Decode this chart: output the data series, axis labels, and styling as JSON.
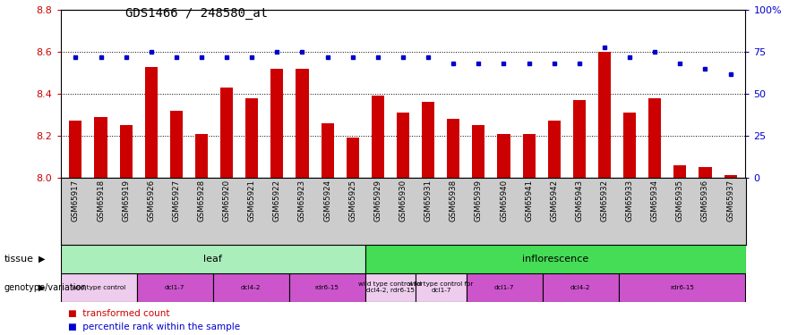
{
  "title": "GDS1466 / 248580_at",
  "samples": [
    "GSM65917",
    "GSM65918",
    "GSM65919",
    "GSM65926",
    "GSM65927",
    "GSM65928",
    "GSM65920",
    "GSM65921",
    "GSM65922",
    "GSM65923",
    "GSM65924",
    "GSM65925",
    "GSM65929",
    "GSM65930",
    "GSM65931",
    "GSM65938",
    "GSM65939",
    "GSM65940",
    "GSM65941",
    "GSM65942",
    "GSM65943",
    "GSM65932",
    "GSM65933",
    "GSM65934",
    "GSM65935",
    "GSM65936",
    "GSM65937"
  ],
  "transformed_count": [
    8.27,
    8.29,
    8.25,
    8.53,
    8.32,
    8.21,
    8.43,
    8.38,
    8.52,
    8.52,
    8.26,
    8.19,
    8.39,
    8.31,
    8.36,
    8.28,
    8.25,
    8.21,
    8.21,
    8.27,
    8.37,
    8.6,
    8.31,
    8.38,
    8.06,
    8.05,
    8.01
  ],
  "percentile": [
    72,
    72,
    72,
    75,
    72,
    72,
    72,
    72,
    75,
    75,
    72,
    72,
    72,
    72,
    72,
    68,
    68,
    68,
    68,
    68,
    68,
    78,
    72,
    75,
    68,
    65,
    62
  ],
  "ylim_left": [
    8.0,
    8.8
  ],
  "ylim_right": [
    0,
    100
  ],
  "yticks_left": [
    8.0,
    8.2,
    8.4,
    8.6,
    8.8
  ],
  "yticks_right": [
    0,
    25,
    50,
    75,
    100
  ],
  "ytick_right_labels": [
    "0",
    "25",
    "50",
    "75",
    "100%"
  ],
  "bar_color": "#cc0000",
  "dot_color": "#0000cc",
  "grid_color": "#000000",
  "bg_color": "#ffffff",
  "xlabels_bg": "#cccccc",
  "tissue_rows": [
    {
      "label": "leaf",
      "start": 0,
      "end": 11,
      "color": "#aaeebb"
    },
    {
      "label": "inflorescence",
      "start": 12,
      "end": 26,
      "color": "#44dd55"
    }
  ],
  "genotype_rows": [
    {
      "label": "wild type control",
      "start": 0,
      "end": 2,
      "color": "#eeccee"
    },
    {
      "label": "dcl1-7",
      "start": 3,
      "end": 5,
      "color": "#cc55cc"
    },
    {
      "label": "dcl4-2",
      "start": 6,
      "end": 8,
      "color": "#cc55cc"
    },
    {
      "label": "rdr6-15",
      "start": 9,
      "end": 11,
      "color": "#cc55cc"
    },
    {
      "label": "wild type control for\ndcl4-2, rdr6-15",
      "start": 12,
      "end": 13,
      "color": "#eeccee"
    },
    {
      "label": "wild type control for\ndcl1-7",
      "start": 14,
      "end": 15,
      "color": "#eeccee"
    },
    {
      "label": "dcl1-7",
      "start": 16,
      "end": 18,
      "color": "#cc55cc"
    },
    {
      "label": "dcl4-2",
      "start": 19,
      "end": 21,
      "color": "#cc55cc"
    },
    {
      "label": "rdr6-15",
      "start": 22,
      "end": 26,
      "color": "#cc55cc"
    }
  ],
  "legend_items": [
    {
      "label": "transformed count",
      "color": "#cc0000"
    },
    {
      "label": "percentile rank within the sample",
      "color": "#0000cc"
    }
  ],
  "left_axis_color": "#cc0000",
  "right_axis_color": "#0000cc",
  "bar_width": 0.5,
  "figsize": [
    9.0,
    3.75
  ],
  "dpi": 100
}
